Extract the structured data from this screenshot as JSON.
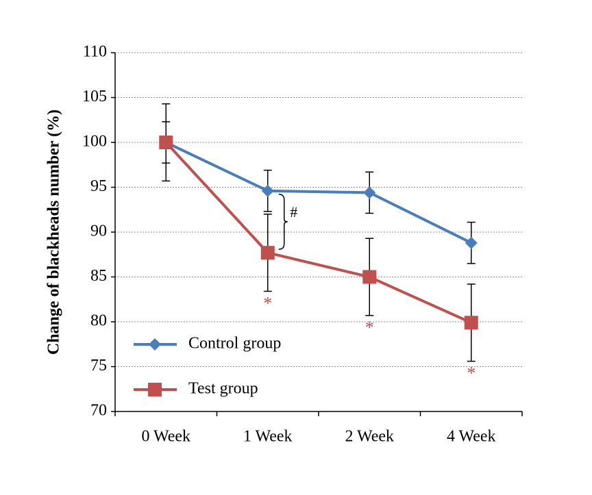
{
  "chart_data": {
    "type": "line",
    "y_label": "Change of blackheads number (%)",
    "categories": [
      "0 Week",
      "1 Week",
      "2 Week",
      "4 Week"
    ],
    "series": [
      {
        "name": "Control group",
        "color": "#4a7ebb",
        "marker": "diamond",
        "values": [
          100,
          94.6,
          94.4,
          88.8
        ],
        "errors": [
          2.3,
          2.3,
          2.3,
          2.3
        ]
      },
      {
        "name": "Test group",
        "color": "#c0504d",
        "marker": "square",
        "values": [
          100,
          87.7,
          85,
          79.9
        ],
        "errors": [
          4.3,
          4.3,
          4.3,
          4.3
        ],
        "significance": [
          null,
          "*",
          "*",
          "*"
        ]
      }
    ],
    "between_groups": {
      "category": "1 Week",
      "label": "#"
    },
    "ylim": [
      70,
      110
    ],
    "yticks": [
      70,
      75,
      80,
      85,
      90,
      95,
      100,
      105,
      110
    ],
    "grid": true,
    "legend": "lower left"
  }
}
